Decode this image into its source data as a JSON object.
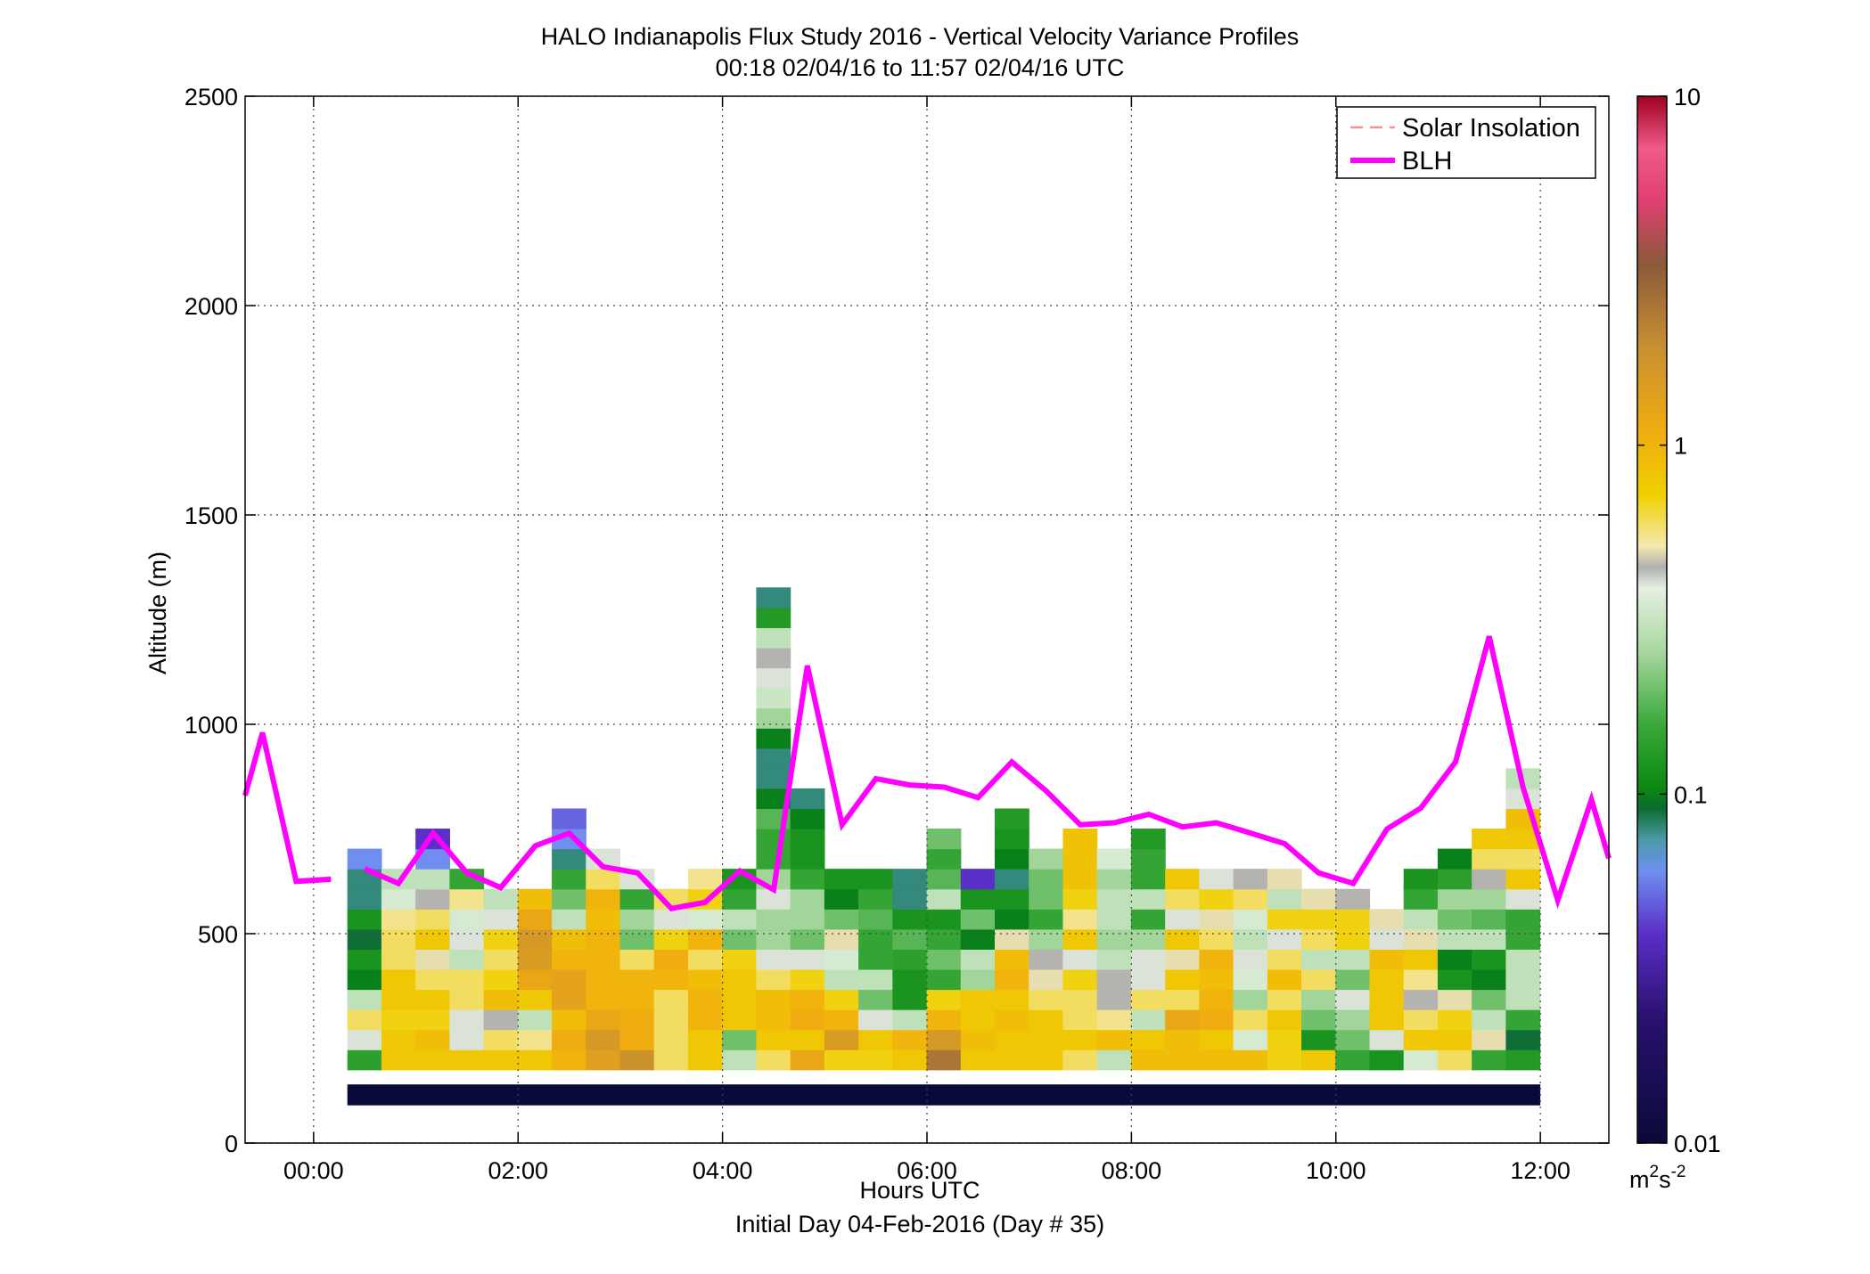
{
  "chart_data": {
    "type": "heatmap",
    "title": "HALO Indianapolis Flux Study 2016 - Vertical Velocity Variance Profiles",
    "subtitle": "00:18 02/04/16 to 11:57 02/04/16  UTC",
    "xlabel": "Hours UTC",
    "xlabel2": "Initial Day 04-Feb-2016 (Day # 35)",
    "ylabel": "Altitude (m)",
    "xlim": [
      -0.67,
      12.67
    ],
    "ylim": [
      0,
      2500
    ],
    "grid": true,
    "xticks": [
      {
        "value": 0,
        "label": "00:00"
      },
      {
        "value": 2,
        "label": "02:00"
      },
      {
        "value": 4,
        "label": "04:00"
      },
      {
        "value": 6,
        "label": "06:00"
      },
      {
        "value": 8,
        "label": "08:00"
      },
      {
        "value": 10,
        "label": "10:00"
      },
      {
        "value": 12,
        "label": "12:00"
      }
    ],
    "yticks": [
      {
        "value": 0,
        "label": "0"
      },
      {
        "value": 500,
        "label": "500"
      },
      {
        "value": 1000,
        "label": "1000"
      },
      {
        "value": 1500,
        "label": "1500"
      },
      {
        "value": 2000,
        "label": "2000"
      },
      {
        "value": 2500,
        "label": "2500"
      }
    ],
    "colorbar": {
      "scale": "log",
      "range": [
        0.01,
        10
      ],
      "ticks": [
        {
          "value": 0.01,
          "label": "0.01"
        },
        {
          "value": 0.1,
          "label": "0.1"
        },
        {
          "value": 1,
          "label": "1"
        },
        {
          "value": 10,
          "label": "10"
        }
      ],
      "unit_base": "m",
      "unit_sup1": "2",
      "unit_mid": "s",
      "unit_sup2": "-2",
      "colormap": [
        [
          0.0,
          "#0a0a3a"
        ],
        [
          0.12,
          "#2a1070"
        ],
        [
          0.2,
          "#5a2fc8"
        ],
        [
          0.26,
          "#6f8ff0"
        ],
        [
          0.29,
          "#4a9aa8"
        ],
        [
          0.32,
          "#0b6b2e"
        ],
        [
          0.34,
          "#0a8a10"
        ],
        [
          0.4,
          "#3aa83a"
        ],
        [
          0.47,
          "#a8d8a0"
        ],
        [
          0.53,
          "#e6f0e2"
        ],
        [
          0.55,
          "#b0b0b0"
        ],
        [
          0.57,
          "#f4e8b0"
        ],
        [
          0.62,
          "#f0d000"
        ],
        [
          0.68,
          "#f0ac10"
        ],
        [
          0.76,
          "#c89030"
        ],
        [
          0.84,
          "#8a5a3a"
        ],
        [
          0.9,
          "#e04070"
        ],
        [
          0.95,
          "#f05a8a"
        ],
        [
          1.0,
          "#a00020"
        ]
      ]
    },
    "legend": {
      "position": "top-right",
      "entries": [
        {
          "name": "Solar Insolation",
          "color": "#ff9090",
          "style": "dashed"
        },
        {
          "name": "BLH",
          "color": "#ff00ff",
          "style": "solid"
        }
      ]
    },
    "blh_series": {
      "name": "BLH",
      "color": "#ff00ff",
      "segments": [
        [
          [
            -0.67,
            830
          ],
          [
            -0.5,
            980
          ],
          [
            -0.17,
            625
          ],
          [
            0.17,
            630
          ]
        ],
        [
          [
            0.5,
            655
          ],
          [
            0.83,
            620
          ],
          [
            1.17,
            740
          ],
          [
            1.5,
            645
          ],
          [
            1.83,
            610
          ],
          [
            2.17,
            710
          ],
          [
            2.5,
            740
          ],
          [
            2.83,
            660
          ],
          [
            3.17,
            645
          ],
          [
            3.5,
            560
          ],
          [
            3.83,
            575
          ],
          [
            4.17,
            650
          ],
          [
            4.5,
            605
          ],
          [
            4.83,
            1140
          ],
          [
            5.17,
            760
          ],
          [
            5.5,
            870
          ],
          [
            5.83,
            855
          ],
          [
            6.17,
            850
          ],
          [
            6.5,
            825
          ],
          [
            6.83,
            910
          ],
          [
            7.17,
            840
          ],
          [
            7.5,
            760
          ],
          [
            7.83,
            765
          ],
          [
            8.17,
            785
          ],
          [
            8.5,
            755
          ],
          [
            8.83,
            765
          ],
          [
            9.17,
            740
          ],
          [
            9.5,
            715
          ],
          [
            9.83,
            645
          ],
          [
            10.17,
            620
          ],
          [
            10.5,
            750
          ],
          [
            10.83,
            800
          ],
          [
            11.17,
            910
          ],
          [
            11.5,
            1210
          ],
          [
            11.83,
            850
          ],
          [
            12.17,
            580
          ],
          [
            12.5,
            820
          ],
          [
            12.67,
            680
          ]
        ]
      ]
    },
    "heatmap": {
      "x_start": 0.33,
      "x_step": 0.3333,
      "y_start": 175,
      "y_step": 48,
      "value_unit": "m^2 s^-2 (log scale 0.01-10)",
      "floor_band": {
        "y0": 90,
        "y1": 140,
        "x0": 0.33,
        "x1": 12.0,
        "value": 0.01
      },
      "columns": [
        [
          0.14,
          0.4,
          0.6,
          0.3,
          0.1,
          0.12,
          0.09,
          0.12,
          0.08,
          0.08,
          0.06
        ],
        [
          0.8,
          0.8,
          0.7,
          0.8,
          0.8,
          0.6,
          0.6,
          0.55,
          0.35,
          0.3
        ],
        [
          0.8,
          0.9,
          0.7,
          0.8,
          0.6,
          0.5,
          0.8,
          0.6,
          0.45,
          0.3,
          0.06,
          0.04
        ],
        [
          0.8,
          0.4,
          0.4,
          0.6,
          0.6,
          0.3,
          0.4,
          0.35,
          0.55,
          0.15
        ],
        [
          0.8,
          0.6,
          0.45,
          0.9,
          0.7,
          0.6,
          0.7,
          0.4,
          0.3
        ],
        [
          0.8,
          0.55,
          0.3,
          0.8,
          1.2,
          1.5,
          1.6,
          1.2,
          0.9
        ],
        [
          1.0,
          1.1,
          0.9,
          1.3,
          1.3,
          1.0,
          0.9,
          0.3,
          0.2,
          0.15,
          0.08,
          0.06,
          0.05
        ],
        [
          1.4,
          1.6,
          1.2,
          1.0,
          1.0,
          1.0,
          1.0,
          0.9,
          1.0,
          0.6,
          0.4
        ],
        [
          1.8,
          1.1,
          1.1,
          1.0,
          1.0,
          0.6,
          0.2,
          0.25,
          0.15,
          0.4
        ],
        [
          0.6,
          0.6,
          0.6,
          0.6,
          1.0,
          1.1,
          0.7,
          0.4,
          0.6
        ],
        [
          0.8,
          0.8,
          1.0,
          1.0,
          0.9,
          0.6,
          1.0,
          0.35,
          0.7,
          0.55
        ],
        [
          0.3,
          0.2,
          0.8,
          0.8,
          0.8,
          0.7,
          0.2,
          0.3,
          0.15,
          0.12
        ],
        [
          0.6,
          0.8,
          0.9,
          0.9,
          0.6,
          0.4,
          0.25,
          0.25,
          0.4,
          0.25,
          0.15,
          0.15,
          0.18,
          0.1,
          0.08,
          0.08,
          0.1,
          0.25,
          0.32,
          0.4,
          0.45,
          0.3,
          0.13,
          0.08
        ],
        [
          1.2,
          0.8,
          1.1,
          1.0,
          0.7,
          0.4,
          0.2,
          0.25,
          0.25,
          0.15,
          0.12,
          0.12,
          0.1,
          0.08
        ],
        [
          0.7,
          1.5,
          1.0,
          0.7,
          0.3,
          0.35,
          0.5,
          0.2,
          0.1,
          0.12
        ],
        [
          0.7,
          0.8,
          0.4,
          0.2,
          0.3,
          0.15,
          0.15,
          0.18,
          0.15,
          0.12
        ],
        [
          0.8,
          1.0,
          0.3,
          0.12,
          0.12,
          0.14,
          0.18,
          0.12,
          0.08,
          0.08
        ],
        [
          2.5,
          1.6,
          1.0,
          0.7,
          0.15,
          0.2,
          0.15,
          0.12,
          0.3,
          0.18,
          0.15,
          0.2
        ],
        [
          0.8,
          0.9,
          0.8,
          0.8,
          0.25,
          0.3,
          0.1,
          0.2,
          0.12,
          0.04
        ],
        [
          0.8,
          0.8,
          0.9,
          0.8,
          1.0,
          0.9,
          0.5,
          0.1,
          0.12,
          0.08,
          0.1,
          0.12,
          0.13
        ],
        [
          0.8,
          0.8,
          0.8,
          0.6,
          0.5,
          0.45,
          0.25,
          0.15,
          0.2,
          0.2,
          0.25
        ],
        [
          0.6,
          0.8,
          0.6,
          0.6,
          0.7,
          0.4,
          0.8,
          0.55,
          0.7,
          0.85,
          0.85,
          0.85
        ],
        [
          0.3,
          0.9,
          0.55,
          0.45,
          0.45,
          0.3,
          0.25,
          0.3,
          0.3,
          0.25,
          0.35
        ],
        [
          0.9,
          0.8,
          0.3,
          0.6,
          0.4,
          0.4,
          0.25,
          0.15,
          0.3,
          0.15,
          0.15,
          0.13
        ],
        [
          0.9,
          0.9,
          1.2,
          0.6,
          0.8,
          0.5,
          0.8,
          0.4,
          0.6,
          0.8
        ],
        [
          0.9,
          0.8,
          1.1,
          1.0,
          0.9,
          1.0,
          0.6,
          0.5,
          0.7,
          0.4
        ],
        [
          0.9,
          0.35,
          0.6,
          0.25,
          0.35,
          0.4,
          0.3,
          0.35,
          0.6,
          0.45
        ],
        [
          0.7,
          0.7,
          0.8,
          0.6,
          0.9,
          0.6,
          0.4,
          0.7,
          0.3,
          0.5
        ],
        [
          0.8,
          0.12,
          0.2,
          0.25,
          0.6,
          0.3,
          0.6,
          0.7,
          0.5
        ],
        [
          0.15,
          0.2,
          0.25,
          0.4,
          0.2,
          0.3,
          0.7,
          0.7,
          0.45
        ],
        [
          0.12,
          0.4,
          0.8,
          0.8,
          0.8,
          0.9,
          0.4,
          0.5
        ],
        [
          0.35,
          0.8,
          0.6,
          0.45,
          0.55,
          0.8,
          0.5,
          0.3,
          0.15,
          0.12
        ],
        [
          0.6,
          0.8,
          0.7,
          0.5,
          0.12,
          0.1,
          0.3,
          0.2,
          0.25,
          0.14,
          0.1
        ],
        [
          0.15,
          0.5,
          0.3,
          0.2,
          0.1,
          0.12,
          0.3,
          0.18,
          0.25,
          0.45,
          0.6,
          0.8
        ],
        [
          0.13,
          0.09,
          0.15,
          0.3,
          0.3,
          0.3,
          0.15,
          0.15,
          0.4,
          0.8,
          0.6,
          0.8,
          0.9,
          0.4,
          0.3
        ]
      ]
    }
  }
}
